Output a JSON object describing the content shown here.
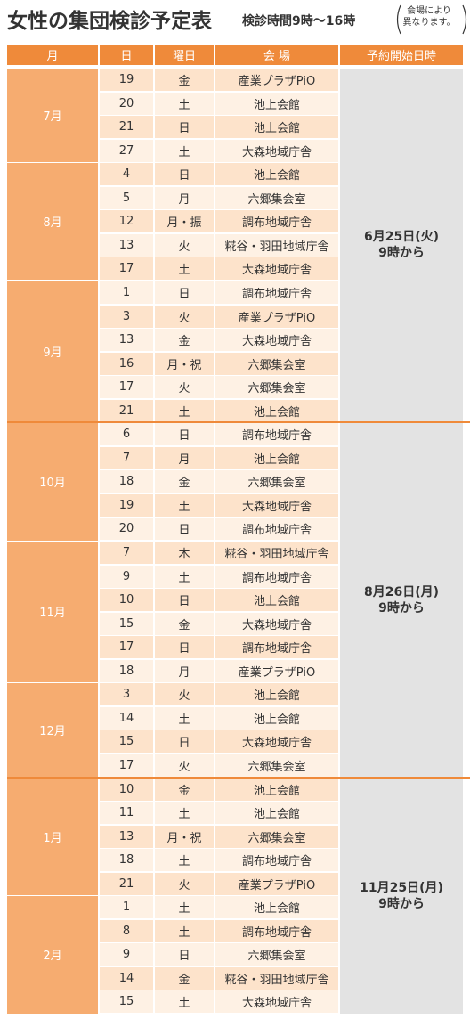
{
  "header": {
    "title": "女性の集団検診予定表",
    "hours": "検診時間9時〜16時",
    "note": [
      "会場により",
      "異なります。"
    ]
  },
  "table": {
    "columns": [
      "月",
      "日",
      "曜日",
      "会 場",
      "予約開始日時"
    ],
    "groups": [
      {
        "date": "6月25日(火)",
        "time": "9時から",
        "months": [
          {
            "month": "7月",
            "rows": [
              [
                "19",
                "金",
                "産業プラザPiO"
              ],
              [
                "20",
                "土",
                "池上会館"
              ],
              [
                "21",
                "日",
                "池上会館"
              ],
              [
                "27",
                "土",
                "大森地域庁舎"
              ]
            ]
          },
          {
            "month": "8月",
            "rows": [
              [
                "4",
                "日",
                "池上会館"
              ],
              [
                "5",
                "月",
                "六郷集会室"
              ],
              [
                "12",
                "月・振",
                "調布地域庁舎"
              ],
              [
                "13",
                "火",
                "糀谷・羽田地域庁舎"
              ],
              [
                "17",
                "土",
                "大森地域庁舎"
              ]
            ]
          },
          {
            "month": "9月",
            "rows": [
              [
                "1",
                "日",
                "調布地域庁舎"
              ],
              [
                "3",
                "火",
                "産業プラザPiO"
              ],
              [
                "13",
                "金",
                "大森地域庁舎"
              ],
              [
                "16",
                "月・祝",
                "六郷集会室"
              ],
              [
                "17",
                "火",
                "六郷集会室"
              ],
              [
                "21",
                "土",
                "池上会館"
              ]
            ]
          }
        ]
      },
      {
        "date": "8月26日(月)",
        "time": "9時から",
        "months": [
          {
            "month": "10月",
            "rows": [
              [
                "6",
                "日",
                "調布地域庁舎"
              ],
              [
                "7",
                "月",
                "池上会館"
              ],
              [
                "18",
                "金",
                "六郷集会室"
              ],
              [
                "19",
                "土",
                "大森地域庁舎"
              ],
              [
                "20",
                "日",
                "調布地域庁舎"
              ]
            ]
          },
          {
            "month": "11月",
            "rows": [
              [
                "7",
                "木",
                "糀谷・羽田地域庁舎"
              ],
              [
                "9",
                "土",
                "調布地域庁舎"
              ],
              [
                "10",
                "日",
                "池上会館"
              ],
              [
                "15",
                "金",
                "大森地域庁舎"
              ],
              [
                "17",
                "日",
                "調布地域庁舎"
              ],
              [
                "18",
                "月",
                "産業プラザPiO"
              ]
            ]
          },
          {
            "month": "12月",
            "rows": [
              [
                "3",
                "火",
                "池上会館"
              ],
              [
                "14",
                "土",
                "池上会館"
              ],
              [
                "15",
                "日",
                "大森地域庁舎"
              ],
              [
                "17",
                "火",
                "六郷集会室"
              ]
            ]
          }
        ]
      },
      {
        "date": "11月25日(月)",
        "time": "9時から",
        "months": [
          {
            "month": "1月",
            "rows": [
              [
                "10",
                "金",
                "池上会館"
              ],
              [
                "11",
                "土",
                "池上会館"
              ],
              [
                "13",
                "月・祝",
                "六郷集会室"
              ],
              [
                "18",
                "土",
                "調布地域庁舎"
              ],
              [
                "21",
                "火",
                "産業プラザPiO"
              ]
            ]
          },
          {
            "month": "2月",
            "rows": [
              [
                "1",
                "土",
                "池上会館"
              ],
              [
                "8",
                "土",
                "調布地域庁舎"
              ],
              [
                "9",
                "日",
                "六郷集会室"
              ],
              [
                "14",
                "金",
                "糀谷・羽田地域庁舎"
              ],
              [
                "15",
                "土",
                "大森地域庁舎"
              ]
            ]
          }
        ]
      }
    ]
  }
}
